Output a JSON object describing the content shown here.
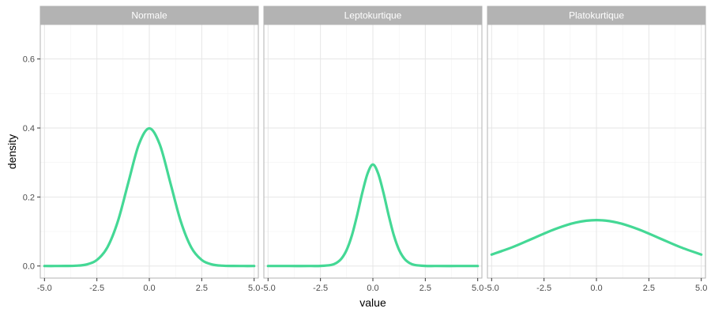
{
  "chart_data": {
    "type": "line",
    "xlabel": "value",
    "ylabel": "density",
    "xlim": [
      -5.2,
      5.2
    ],
    "ylim": [
      -0.035,
      0.7
    ],
    "x_ticks": [
      -5,
      -2.5,
      0,
      2.5,
      5
    ],
    "x_tick_labels": [
      "-5.0",
      "-2.5",
      "0.0",
      "2.5",
      "5.0"
    ],
    "y_ticks": [
      0,
      0.2,
      0.4,
      0.6
    ],
    "y_tick_labels": [
      "0.0",
      "0.2",
      "0.4",
      "0.6"
    ],
    "grid": true,
    "line_color": "#44D895",
    "strip_color": "#B3B3B3",
    "panels": [
      {
        "name": "Normale",
        "x": [
          -5,
          -4.5,
          -4,
          -3.5,
          -3,
          -2.5,
          -2,
          -1.5,
          -1,
          -0.5,
          0,
          0.5,
          1,
          1.5,
          2,
          2.5,
          3,
          3.5,
          4,
          4.5,
          5
        ],
        "y": [
          1.5e-06,
          1.6e-05,
          0.000134,
          0.000873,
          0.00443,
          0.0175,
          0.054,
          0.1295,
          0.242,
          0.352,
          0.3989,
          0.352,
          0.242,
          0.1295,
          0.054,
          0.0175,
          0.00443,
          0.000873,
          0.000134,
          1.6e-05,
          1.5e-06
        ]
      },
      {
        "name": "Leptokurtique",
        "x": [
          -5,
          -4,
          -3,
          -2.5,
          -2,
          -1.75,
          -1.5,
          -1.25,
          -1,
          -0.75,
          -0.5,
          -0.25,
          0,
          0.25,
          0.5,
          0.75,
          1,
          1.25,
          1.5,
          1.75,
          2,
          2.5,
          3,
          4,
          5
        ],
        "y": [
          0,
          0,
          9.7e-06,
          0.00022,
          0.0029,
          0.0085,
          0.0213,
          0.0467,
          0.0889,
          0.1477,
          0.2134,
          0.2685,
          0.2941,
          0.2685,
          0.2134,
          0.1477,
          0.0889,
          0.0467,
          0.0213,
          0.0085,
          0.0029,
          0.00022,
          9.7e-06,
          0,
          0
        ]
      },
      {
        "name": "Platokurtique",
        "x": [
          -5,
          -4,
          -3,
          -2,
          -1,
          0,
          1,
          2,
          3,
          4,
          5
        ],
        "y": [
          0.0332,
          0.0547,
          0.0807,
          0.1065,
          0.1258,
          0.133,
          0.1258,
          0.1065,
          0.0807,
          0.0547,
          0.0332
        ]
      }
    ]
  }
}
